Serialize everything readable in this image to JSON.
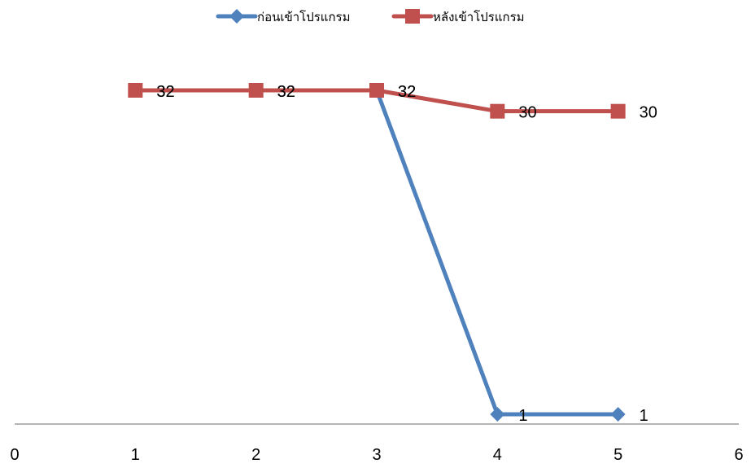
{
  "chart_data": {
    "type": "line",
    "title": "",
    "xlabel": "",
    "ylabel": "",
    "x": [
      1,
      2,
      3,
      4,
      5
    ],
    "xlim": [
      0,
      6
    ],
    "x_ticks": [
      0,
      1,
      2,
      3,
      4,
      5,
      6
    ],
    "grid": false,
    "legend_position": "top",
    "series": [
      {
        "name": "ก่อนเข้าโปรแกรม",
        "values": [
          32,
          32,
          32,
          1,
          1
        ],
        "color": "#4F81BD",
        "marker": "diamond"
      },
      {
        "name": "หลังเข้าโปรแกรม",
        "values": [
          32,
          32,
          32,
          30,
          30
        ],
        "color": "#C0504D",
        "marker": "square"
      }
    ]
  }
}
